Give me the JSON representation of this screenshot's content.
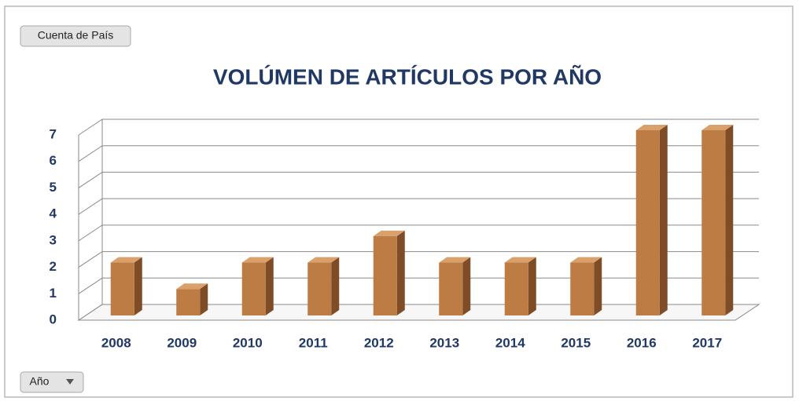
{
  "buttons": {
    "value_field": "Cuenta de País",
    "axis_field": "Año"
  },
  "chart_data": {
    "type": "bar",
    "title": "VOLÚMEN DE ARTÍCULOS POR AÑO",
    "categories": [
      "2008",
      "2009",
      "2010",
      "2011",
      "2012",
      "2013",
      "2014",
      "2015",
      "2016",
      "2017"
    ],
    "values": [
      2,
      1,
      2,
      2,
      3,
      2,
      2,
      2,
      7,
      7
    ],
    "color": "#bd7c44",
    "ylim": [
      0,
      7
    ],
    "yticks": [
      0,
      1,
      2,
      3,
      4,
      5,
      6,
      7
    ],
    "grid": true
  }
}
